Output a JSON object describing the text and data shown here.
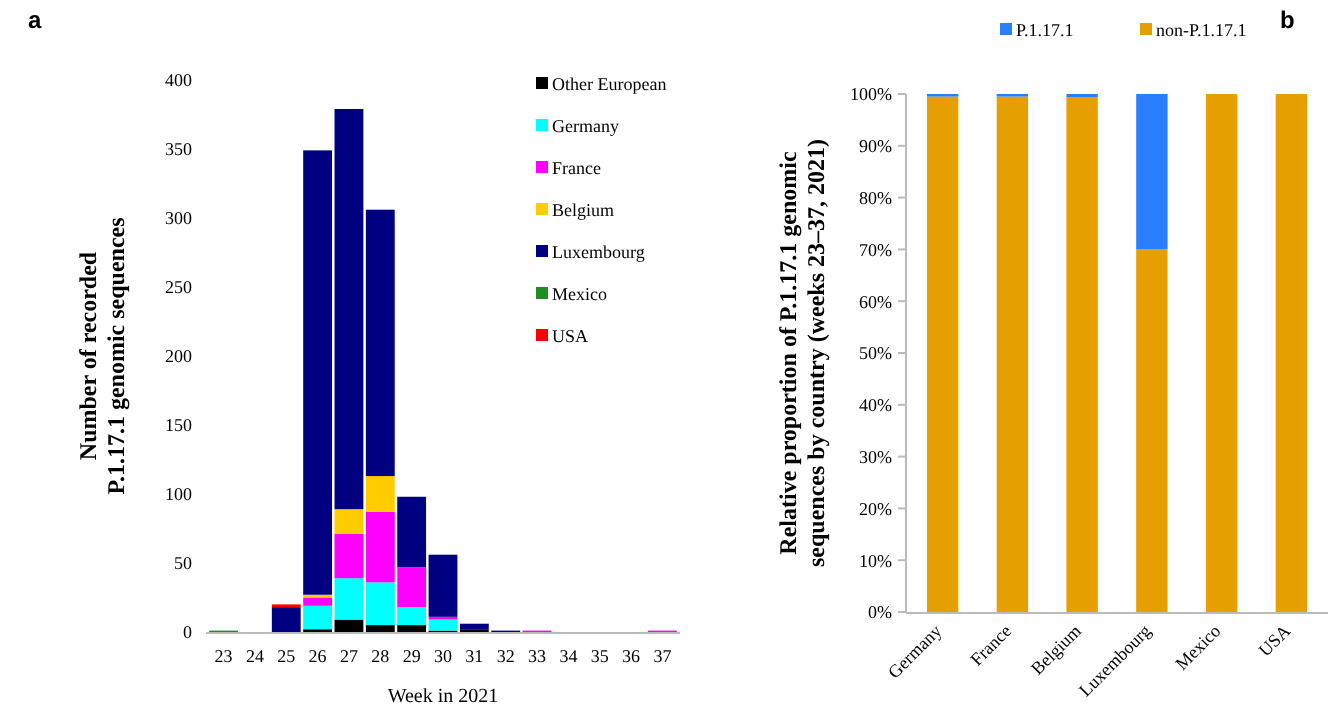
{
  "chart_data": [
    {
      "type": "bar",
      "title": "a",
      "stacked": true,
      "xlabel": "Week in 2021",
      "ylabel": "Number of recorded P.1.17.1 genomic sequences",
      "categories": [
        "23",
        "24",
        "25",
        "26",
        "27",
        "28",
        "29",
        "30",
        "31",
        "32",
        "33",
        "34",
        "35",
        "36",
        "37"
      ],
      "ylim": [
        0,
        400
      ],
      "yticks": [
        0,
        50,
        100,
        150,
        200,
        250,
        300,
        350,
        400
      ],
      "legend": "top right",
      "grid": false,
      "series": [
        {
          "name": "Other European",
          "color": "#000000",
          "values": [
            0,
            0,
            0,
            2,
            9,
            5,
            5,
            1,
            2,
            0,
            0,
            0,
            0,
            0,
            0
          ]
        },
        {
          "name": "Germany",
          "color": "#00ffff",
          "values": [
            0,
            0,
            0,
            17,
            30,
            31,
            13,
            8,
            0,
            0,
            0,
            0,
            0,
            0,
            0
          ]
        },
        {
          "name": "France",
          "color": "#ff00ff",
          "values": [
            0,
            0,
            0,
            6,
            32,
            51,
            29,
            2,
            0,
            0,
            1,
            0,
            0,
            0,
            1
          ]
        },
        {
          "name": "Belgium",
          "color": "#ffcc00",
          "values": [
            0,
            0,
            0,
            2,
            18,
            26,
            0,
            0,
            0,
            0,
            0,
            0,
            0,
            0,
            0
          ]
        },
        {
          "name": "Luxembourg",
          "color": "#000080",
          "values": [
            0,
            0,
            18,
            322,
            290,
            193,
            51,
            45,
            4,
            1,
            0,
            0,
            0,
            0,
            0
          ]
        },
        {
          "name": "Mexico",
          "color": "#228b22",
          "values": [
            1,
            0,
            0,
            0,
            0,
            0,
            0,
            0,
            0,
            0,
            0,
            0,
            0,
            0,
            0
          ]
        },
        {
          "name": "USA",
          "color": "#ff0000",
          "values": [
            0,
            0,
            2,
            0,
            0,
            0,
            0,
            0,
            0,
            0,
            0,
            0,
            0,
            0,
            0
          ]
        }
      ]
    },
    {
      "type": "bar",
      "title": "b",
      "stacked": true,
      "ylabel": "Relative proportion of P.1.17.1 genomic sequences by country (weeks 23–37, 2021)",
      "categories": [
        "Germany",
        "France",
        "Belgium",
        "Luxembourg",
        "Mexico",
        "USA"
      ],
      "ylim": [
        0,
        100
      ],
      "yticks": [
        {
          "value": 0,
          "label": "0%"
        },
        {
          "value": 10,
          "label": "10%"
        },
        {
          "value": 20,
          "label": "20%"
        },
        {
          "value": 30,
          "label": "30%"
        },
        {
          "value": 40,
          "label": "40%"
        },
        {
          "value": 50,
          "label": "50%"
        },
        {
          "value": 60,
          "label": "60%"
        },
        {
          "value": 70,
          "label": "70%"
        },
        {
          "value": 80,
          "label": "80%"
        },
        {
          "value": 90,
          "label": "90%"
        },
        {
          "value": 100,
          "label": "100%"
        }
      ],
      "legend": "top",
      "grid": false,
      "series": [
        {
          "name": "non-P.1.17.1",
          "color": "#e5a000",
          "values": [
            99.5,
            99.5,
            99.4,
            70,
            100,
            100
          ]
        },
        {
          "name": "P.1.17.1",
          "color": "#2a7fff",
          "values": [
            0.5,
            0.5,
            0.6,
            30,
            0,
            0
          ]
        }
      ]
    }
  ]
}
